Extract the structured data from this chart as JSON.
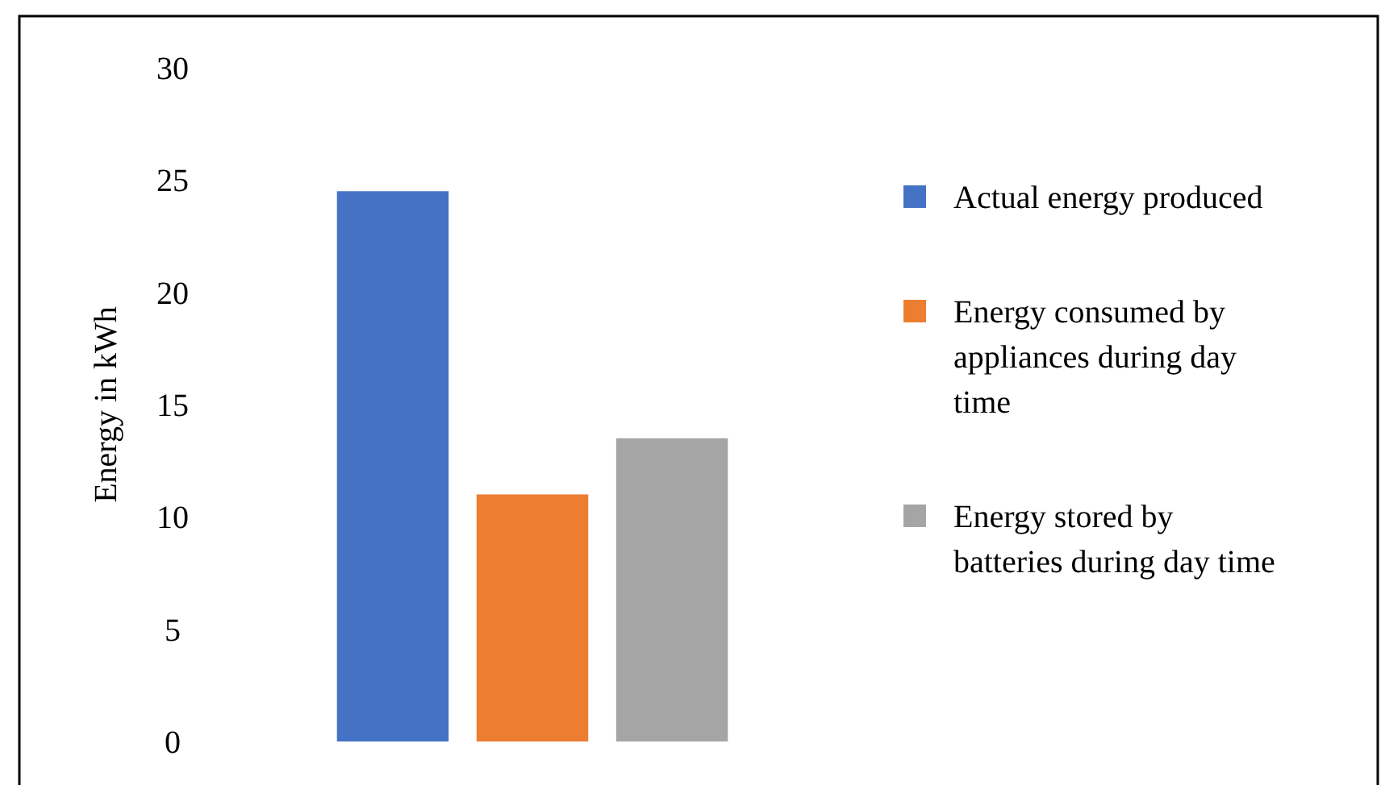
{
  "chart_data": {
    "type": "bar",
    "ylabel": "Energy in kWh",
    "categories": [
      null
    ],
    "series": [
      {
        "name": "Actual energy produced",
        "color": "#4472c4",
        "values": [
          24.5
        ]
      },
      {
        "name": "Energy consumed by appliances during day time",
        "color": "#ed7d31",
        "values": [
          11
        ]
      },
      {
        "name": "Energy stored by batteries during day time",
        "color": "#a5a5a5",
        "values": [
          13.5
        ]
      }
    ],
    "ylim": [
      0,
      30
    ],
    "yticks": [
      0,
      5,
      10,
      15,
      20,
      25,
      30
    ],
    "grid": false,
    "legend": "right"
  }
}
